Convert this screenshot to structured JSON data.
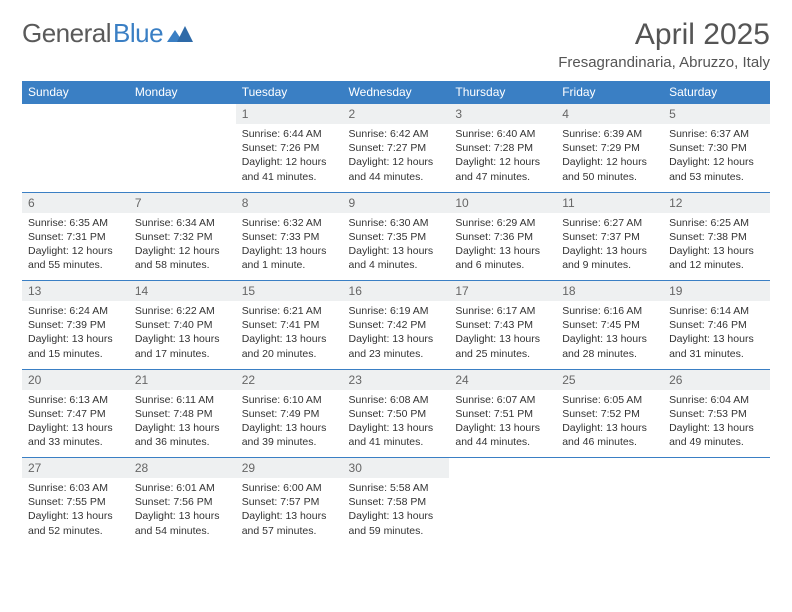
{
  "logo": {
    "text1": "General",
    "text2": "Blue"
  },
  "title": "April 2025",
  "location": "Fresagrandinaria, Abruzzo, Italy",
  "colors": {
    "header_bg": "#3a7fc4",
    "header_text": "#ffffff",
    "daynum_bg": "#eef0f1",
    "border": "#3a7fc4",
    "text": "#333333",
    "logo_gray": "#5a5a5a",
    "logo_blue": "#3a7fc4"
  },
  "columns": [
    "Sunday",
    "Monday",
    "Tuesday",
    "Wednesday",
    "Thursday",
    "Friday",
    "Saturday"
  ],
  "weeks": [
    [
      null,
      null,
      {
        "n": "1",
        "sr": "6:44 AM",
        "ss": "7:26 PM",
        "dl": "12 hours and 41 minutes."
      },
      {
        "n": "2",
        "sr": "6:42 AM",
        "ss": "7:27 PM",
        "dl": "12 hours and 44 minutes."
      },
      {
        "n": "3",
        "sr": "6:40 AM",
        "ss": "7:28 PM",
        "dl": "12 hours and 47 minutes."
      },
      {
        "n": "4",
        "sr": "6:39 AM",
        "ss": "7:29 PM",
        "dl": "12 hours and 50 minutes."
      },
      {
        "n": "5",
        "sr": "6:37 AM",
        "ss": "7:30 PM",
        "dl": "12 hours and 53 minutes."
      }
    ],
    [
      {
        "n": "6",
        "sr": "6:35 AM",
        "ss": "7:31 PM",
        "dl": "12 hours and 55 minutes."
      },
      {
        "n": "7",
        "sr": "6:34 AM",
        "ss": "7:32 PM",
        "dl": "12 hours and 58 minutes."
      },
      {
        "n": "8",
        "sr": "6:32 AM",
        "ss": "7:33 PM",
        "dl": "13 hours and 1 minute."
      },
      {
        "n": "9",
        "sr": "6:30 AM",
        "ss": "7:35 PM",
        "dl": "13 hours and 4 minutes."
      },
      {
        "n": "10",
        "sr": "6:29 AM",
        "ss": "7:36 PM",
        "dl": "13 hours and 6 minutes."
      },
      {
        "n": "11",
        "sr": "6:27 AM",
        "ss": "7:37 PM",
        "dl": "13 hours and 9 minutes."
      },
      {
        "n": "12",
        "sr": "6:25 AM",
        "ss": "7:38 PM",
        "dl": "13 hours and 12 minutes."
      }
    ],
    [
      {
        "n": "13",
        "sr": "6:24 AM",
        "ss": "7:39 PM",
        "dl": "13 hours and 15 minutes."
      },
      {
        "n": "14",
        "sr": "6:22 AM",
        "ss": "7:40 PM",
        "dl": "13 hours and 17 minutes."
      },
      {
        "n": "15",
        "sr": "6:21 AM",
        "ss": "7:41 PM",
        "dl": "13 hours and 20 minutes."
      },
      {
        "n": "16",
        "sr": "6:19 AM",
        "ss": "7:42 PM",
        "dl": "13 hours and 23 minutes."
      },
      {
        "n": "17",
        "sr": "6:17 AM",
        "ss": "7:43 PM",
        "dl": "13 hours and 25 minutes."
      },
      {
        "n": "18",
        "sr": "6:16 AM",
        "ss": "7:45 PM",
        "dl": "13 hours and 28 minutes."
      },
      {
        "n": "19",
        "sr": "6:14 AM",
        "ss": "7:46 PM",
        "dl": "13 hours and 31 minutes."
      }
    ],
    [
      {
        "n": "20",
        "sr": "6:13 AM",
        "ss": "7:47 PM",
        "dl": "13 hours and 33 minutes."
      },
      {
        "n": "21",
        "sr": "6:11 AM",
        "ss": "7:48 PM",
        "dl": "13 hours and 36 minutes."
      },
      {
        "n": "22",
        "sr": "6:10 AM",
        "ss": "7:49 PM",
        "dl": "13 hours and 39 minutes."
      },
      {
        "n": "23",
        "sr": "6:08 AM",
        "ss": "7:50 PM",
        "dl": "13 hours and 41 minutes."
      },
      {
        "n": "24",
        "sr": "6:07 AM",
        "ss": "7:51 PM",
        "dl": "13 hours and 44 minutes."
      },
      {
        "n": "25",
        "sr": "6:05 AM",
        "ss": "7:52 PM",
        "dl": "13 hours and 46 minutes."
      },
      {
        "n": "26",
        "sr": "6:04 AM",
        "ss": "7:53 PM",
        "dl": "13 hours and 49 minutes."
      }
    ],
    [
      {
        "n": "27",
        "sr": "6:03 AM",
        "ss": "7:55 PM",
        "dl": "13 hours and 52 minutes."
      },
      {
        "n": "28",
        "sr": "6:01 AM",
        "ss": "7:56 PM",
        "dl": "13 hours and 54 minutes."
      },
      {
        "n": "29",
        "sr": "6:00 AM",
        "ss": "7:57 PM",
        "dl": "13 hours and 57 minutes."
      },
      {
        "n": "30",
        "sr": "5:58 AM",
        "ss": "7:58 PM",
        "dl": "13 hours and 59 minutes."
      },
      null,
      null,
      null
    ]
  ],
  "labels": {
    "sunrise": "Sunrise:",
    "sunset": "Sunset:",
    "daylight": "Daylight:"
  }
}
